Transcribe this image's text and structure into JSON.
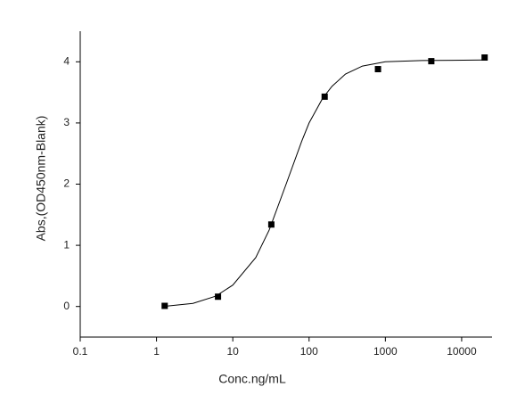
{
  "chart_data": {
    "type": "scatter",
    "x_label": "Conc.ng/mL",
    "y_label": "Abs,(OD450nm-Blank)",
    "x": [
      1.28,
      6.4,
      32,
      160,
      800,
      4000,
      20000
    ],
    "values": [
      0.01,
      0.16,
      1.34,
      3.43,
      3.88,
      4.01,
      4.07
    ],
    "color": "#000000",
    "curve": {
      "x": [
        1.2,
        3,
        6,
        10,
        20,
        30,
        50,
        80,
        100,
        150,
        200,
        300,
        500,
        1000,
        3000,
        20000
      ],
      "values": [
        0.0,
        0.05,
        0.17,
        0.35,
        0.8,
        1.25,
        2.0,
        2.7,
        3.0,
        3.4,
        3.6,
        3.8,
        3.93,
        4.0,
        4.02,
        4.03
      ],
      "color": "#000000"
    },
    "xlog": true,
    "xlim": [
      0.1,
      25000
    ],
    "xticks": [
      0.1,
      1,
      10,
      100,
      1000,
      10000
    ],
    "ylim": [
      -0.5,
      4.5
    ],
    "yticks": [
      0,
      1,
      2,
      3,
      4
    ]
  }
}
